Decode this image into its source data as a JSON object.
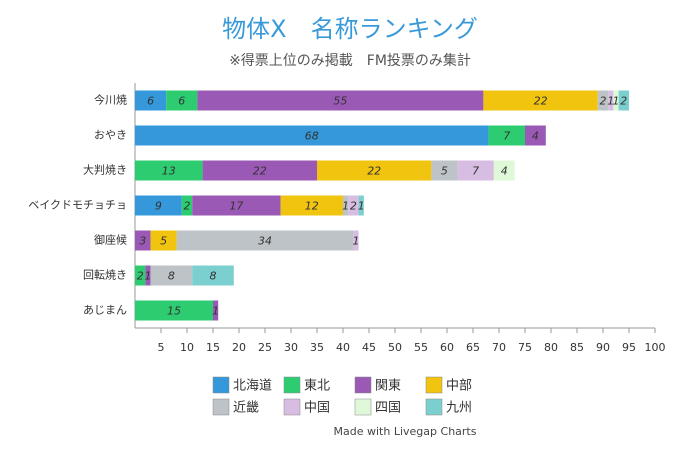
{
  "chart_data": {
    "type": "stacked-bar-horizontal",
    "title": "物体X　名称ランキング",
    "subtitle": "※得票上位のみ掲載　FM投票のみ集計",
    "footer": "Made with Livegap Charts",
    "categories": [
      "今川焼",
      "おやき",
      "大判焼き",
      "ベイクドモチョチョ",
      "御座候",
      "回転焼き",
      "あじまん"
    ],
    "series": [
      {
        "name": "北海道",
        "color": "#3498db",
        "values": [
          6,
          68,
          null,
          9,
          null,
          null,
          null
        ]
      },
      {
        "name": "東北",
        "color": "#2ecc71",
        "values": [
          6,
          7,
          13,
          2,
          null,
          2,
          15
        ]
      },
      {
        "name": "関東",
        "color": "#9b59b6",
        "values": [
          55,
          4,
          22,
          17,
          3,
          1,
          1
        ]
      },
      {
        "name": "中部",
        "color": "#f1c40f",
        "values": [
          22,
          null,
          22,
          12,
          5,
          null,
          null
        ]
      },
      {
        "name": "近畿",
        "color": "#bdc3c7",
        "values": [
          2,
          null,
          5,
          1,
          34,
          8,
          null
        ]
      },
      {
        "name": "中国",
        "color": "#d7bde2",
        "values": [
          1,
          null,
          7,
          2,
          1,
          null,
          null
        ]
      },
      {
        "name": "四国",
        "color": "#dff8d8",
        "values": [
          1,
          null,
          4,
          null,
          null,
          null,
          null
        ]
      },
      {
        "name": "九州",
        "color": "#7ccfcf",
        "values": [
          2,
          null,
          null,
          1,
          null,
          8,
          null
        ]
      }
    ],
    "xlim": [
      0,
      100
    ],
    "xticks": [
      5,
      10,
      15,
      20,
      25,
      30,
      35,
      40,
      45,
      50,
      55,
      60,
      65,
      70,
      75,
      80,
      85,
      90,
      95,
      100
    ],
    "grid": false
  }
}
